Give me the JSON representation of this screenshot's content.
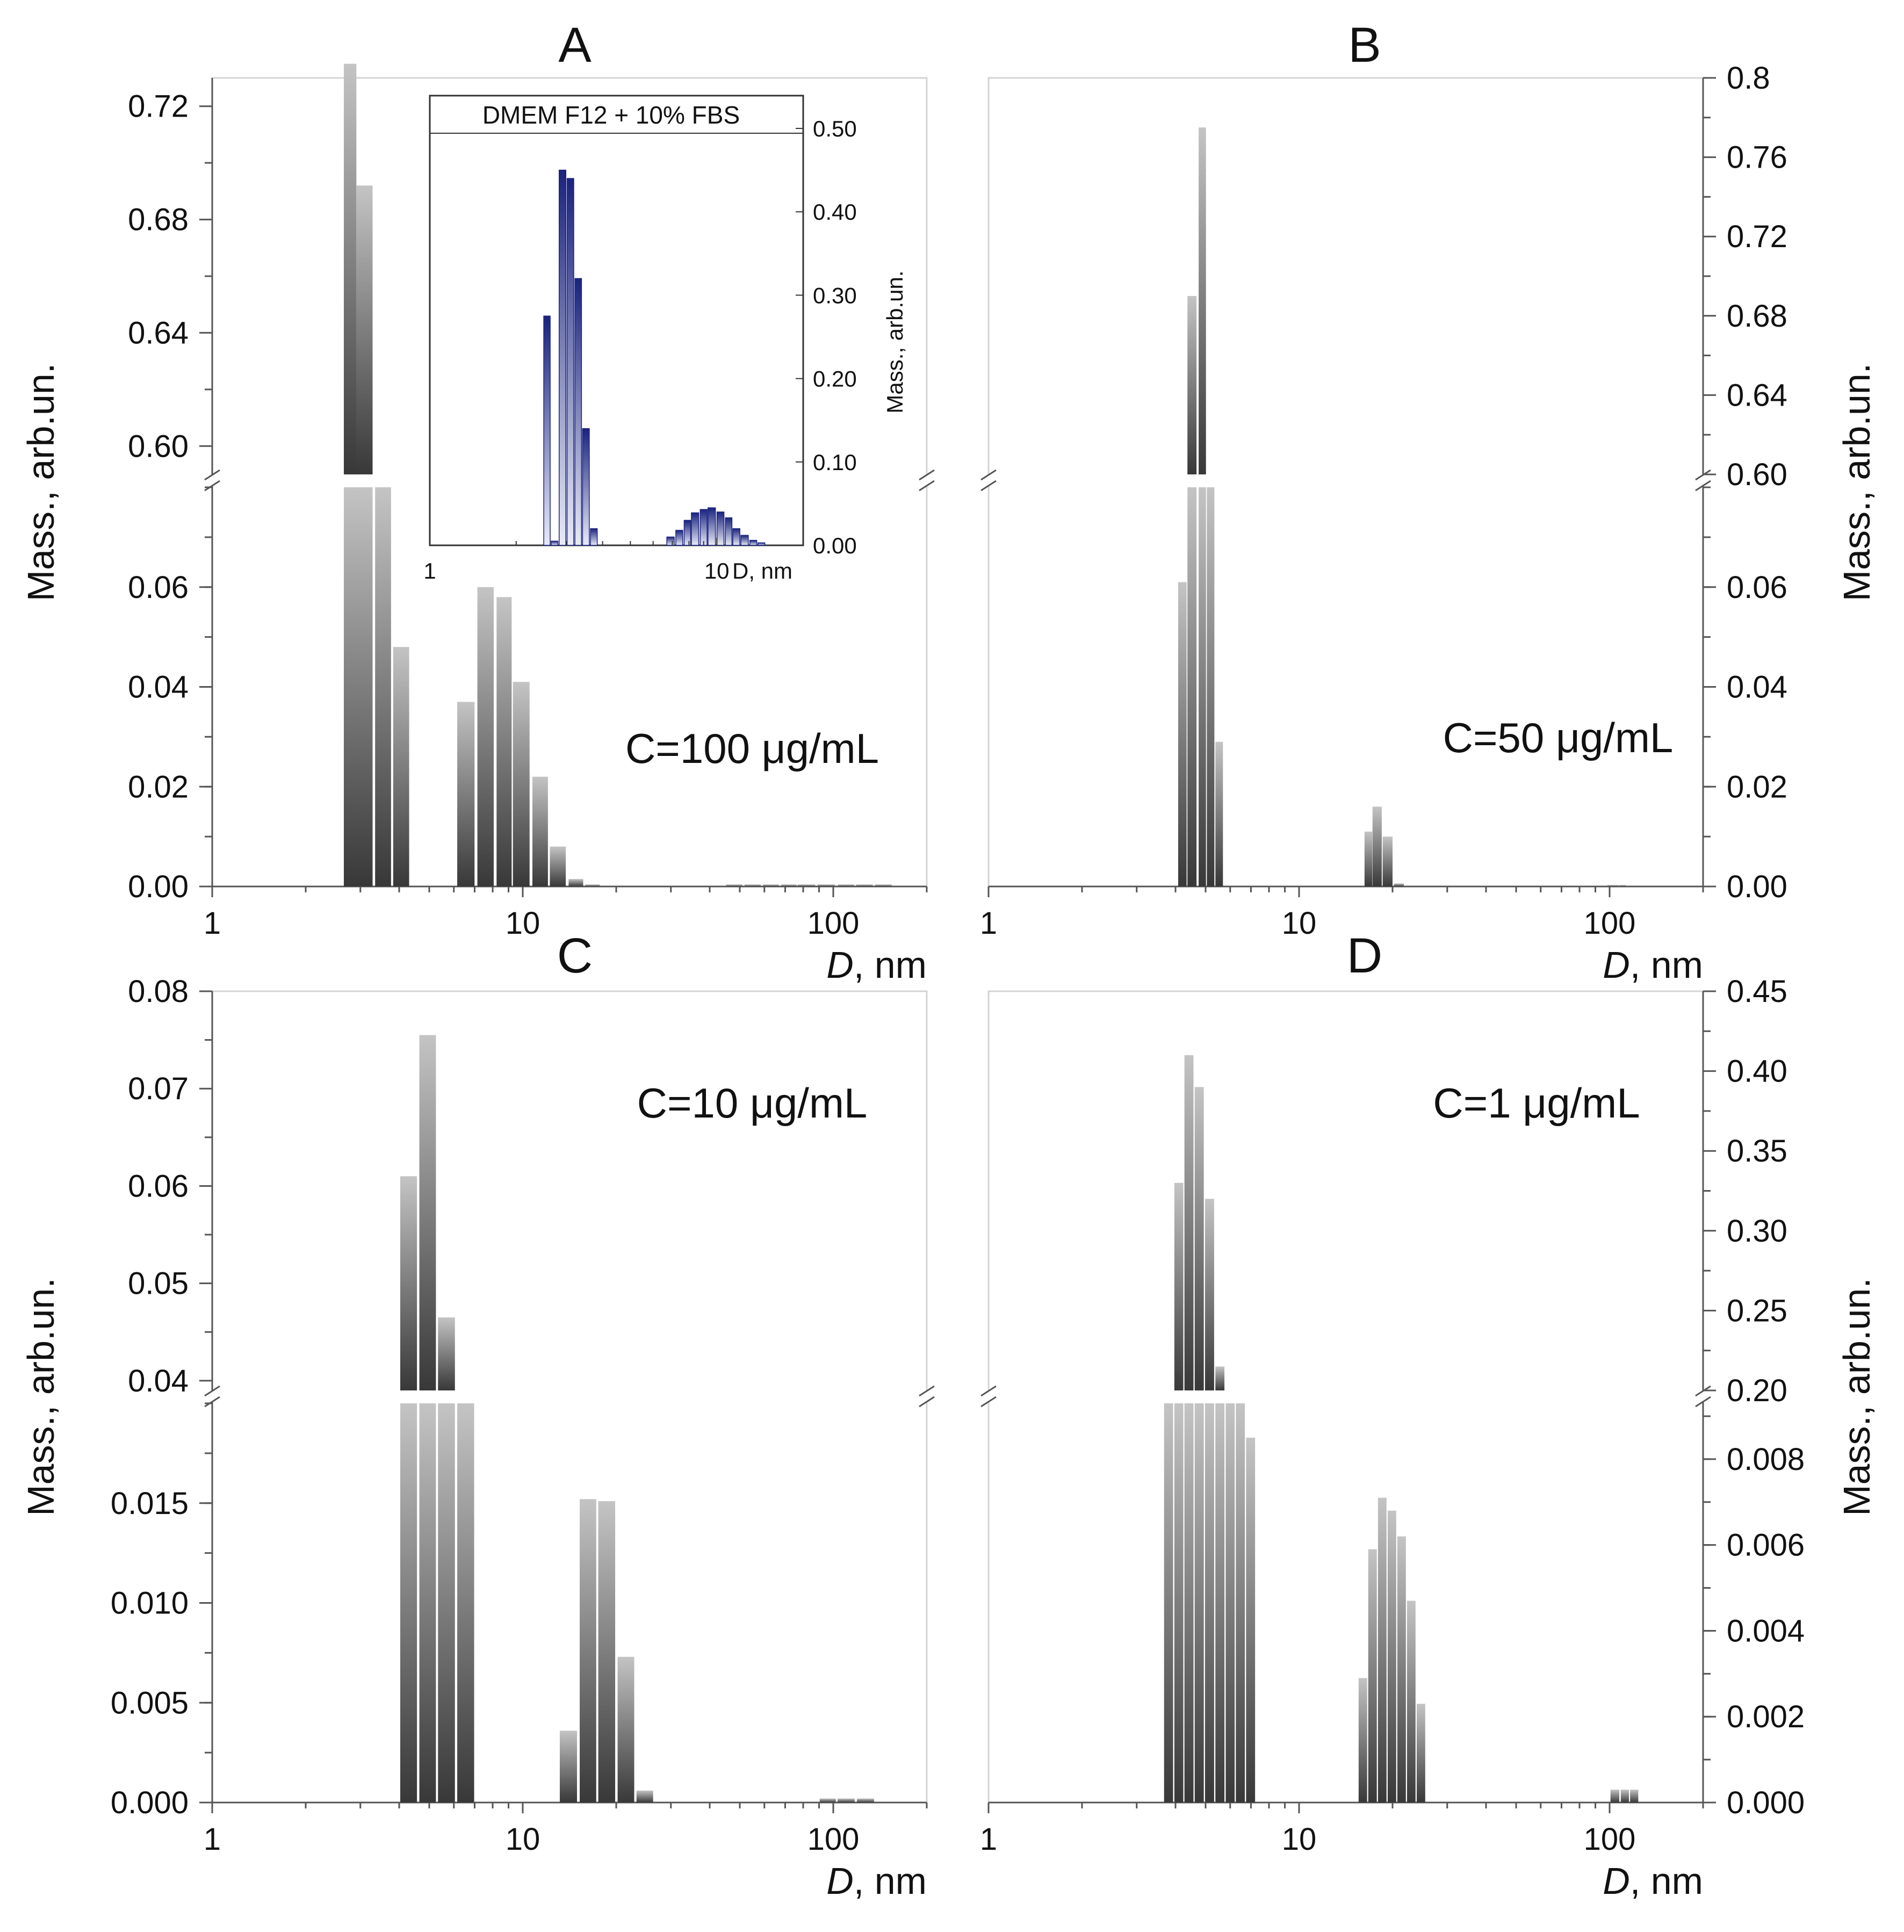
{
  "chart_data": [
    {
      "type": "bar",
      "panel": "A",
      "title": "A",
      "annotation": "C=100 μg/mL",
      "xlabel_var": "D",
      "xlabel_unit": ", nm",
      "ylabel": "Mass., arb.un.",
      "xscale": "log",
      "xlim": [
        1,
        200
      ],
      "xticks": [
        "1",
        "10",
        "100"
      ],
      "y_axis_side": "left",
      "lower_ylim": [
        0,
        0.08
      ],
      "lower_ticks": [
        "0.00",
        "0.02",
        "0.04",
        "0.06"
      ],
      "upper_ylim": [
        0.59,
        0.73
      ],
      "upper_ticks": [
        "0.60",
        "0.64",
        "0.68",
        "0.72"
      ],
      "x": [
        2.78,
        3.09,
        3.55,
        4.06,
        6.56,
        7.59,
        8.71,
        9.89,
        11.38,
        12.97,
        14.83,
        16.77,
        48,
        55,
        63,
        72,
        82,
        95,
        110,
        126,
        145
      ],
      "values": [
        0.735,
        0.692,
        0.59,
        0.048,
        0.037,
        0.06,
        0.058,
        0.041,
        0.022,
        0.008,
        0.0015,
        0.0004,
        0.0004,
        0.0004,
        0.0004,
        0.0004,
        0.0004,
        0.0004,
        0.0004,
        0.0004,
        0.0004
      ],
      "inset": {
        "type": "bar",
        "title": "DMEM F12 + 10% FBS",
        "xlabel": "D, nm",
        "ylabel": "Mass., arb.un.",
        "xscale": "log",
        "xlim": [
          1,
          20
        ],
        "xticks": [
          "1",
          "10"
        ],
        "ylim": [
          0,
          0.52
        ],
        "yticks": [
          "0.00",
          "0.10",
          "0.20",
          "0.30",
          "0.40",
          "0.50"
        ],
        "x": [
          2.56,
          2.72,
          2.9,
          3.09,
          3.29,
          3.5,
          3.73,
          6.9,
          7.4,
          7.9,
          8.4,
          9.0,
          9.6,
          10.3,
          11.0,
          11.7,
          12.5,
          13.4,
          14.3
        ],
        "values": [
          0.275,
          0.005,
          0.45,
          0.44,
          0.32,
          0.14,
          0.02,
          0.01,
          0.018,
          0.03,
          0.039,
          0.043,
          0.045,
          0.04,
          0.033,
          0.02,
          0.012,
          0.006,
          0.003
        ]
      }
    },
    {
      "type": "bar",
      "panel": "B",
      "title": "B",
      "annotation": "C=50 μg/mL",
      "xlabel_var": "D",
      "xlabel_unit": ", nm",
      "ylabel": "Mass., arb.un.",
      "xscale": "log",
      "xlim": [
        1,
        200
      ],
      "xticks": [
        "1",
        "10",
        "100"
      ],
      "y_axis_side": "right",
      "lower_ylim": [
        0,
        0.08
      ],
      "lower_ticks": [
        "0.00",
        "0.02",
        "0.04",
        "0.06"
      ],
      "upper_ylim": [
        0.6,
        0.8
      ],
      "upper_ticks": [
        "0.60",
        "0.64",
        "0.68",
        "0.72",
        "0.76",
        "0.8"
      ],
      "x": [
        4.21,
        4.52,
        4.88,
        5.19,
        5.53,
        16.72,
        17.84,
        19.28,
        20.96,
        100,
        104,
        110
      ],
      "values": [
        0.061,
        0.69,
        0.775,
        0.6,
        0.029,
        0.011,
        0.016,
        0.01,
        0.0006,
        0.0003,
        0.0003,
        0.0003
      ]
    },
    {
      "type": "bar",
      "panel": "C",
      "title": "C",
      "annotation": "C=10 μg/mL",
      "xlabel_var": "D",
      "xlabel_unit": ", nm",
      "ylabel": "Mass., arb.un.",
      "xscale": "log",
      "xlim": [
        1,
        200
      ],
      "xticks": [
        "1",
        "10",
        "100"
      ],
      "y_axis_side": "left",
      "lower_ylim": [
        0,
        0.02
      ],
      "lower_ticks": [
        "0.000",
        "0.005",
        "0.010",
        "0.015"
      ],
      "upper_ylim": [
        0.039,
        0.08
      ],
      "upper_ticks": [
        "0.04",
        "0.05",
        "0.06",
        "0.07",
        "0.08"
      ],
      "x": [
        4.29,
        4.94,
        5.68,
        6.55,
        14.03,
        16.22,
        18.64,
        21.49,
        24.72,
        96,
        110,
        127
      ],
      "values": [
        0.061,
        0.0755,
        0.0465,
        0.039,
        0.0036,
        0.0152,
        0.0151,
        0.0073,
        0.0006,
        0.0002,
        0.0002,
        0.0002
      ]
    },
    {
      "type": "bar",
      "panel": "D",
      "title": "D",
      "annotation": "C=1 μg/mL",
      "xlabel_var": "D",
      "xlabel_unit": ", nm",
      "ylabel": "Mass., arb.un.",
      "xscale": "log",
      "xlim": [
        1,
        200
      ],
      "xticks": [
        "1",
        "10",
        "100"
      ],
      "y_axis_side": "right",
      "lower_ylim": [
        0,
        0.0093
      ],
      "lower_ticks": [
        "0.000",
        "0.002",
        "0.004",
        "0.006",
        "0.008"
      ],
      "upper_ylim": [
        0.2,
        0.45
      ],
      "upper_ticks": [
        "0.20",
        "0.25",
        "0.30",
        "0.35",
        "0.40",
        "0.45"
      ],
      "x": [
        3.8,
        4.1,
        4.42,
        4.77,
        5.15,
        5.56,
        6.0,
        6.47,
        6.98,
        16.05,
        17.24,
        18.53,
        19.91,
        21.39,
        22.98,
        24.69,
        104,
        112,
        120
      ],
      "values": [
        0.2,
        0.33,
        0.41,
        0.39,
        0.32,
        0.215,
        0.2,
        0.2,
        0.0085,
        0.0029,
        0.0059,
        0.0071,
        0.0068,
        0.0062,
        0.0047,
        0.0023,
        0.0003,
        0.0003,
        0.0003
      ]
    }
  ]
}
